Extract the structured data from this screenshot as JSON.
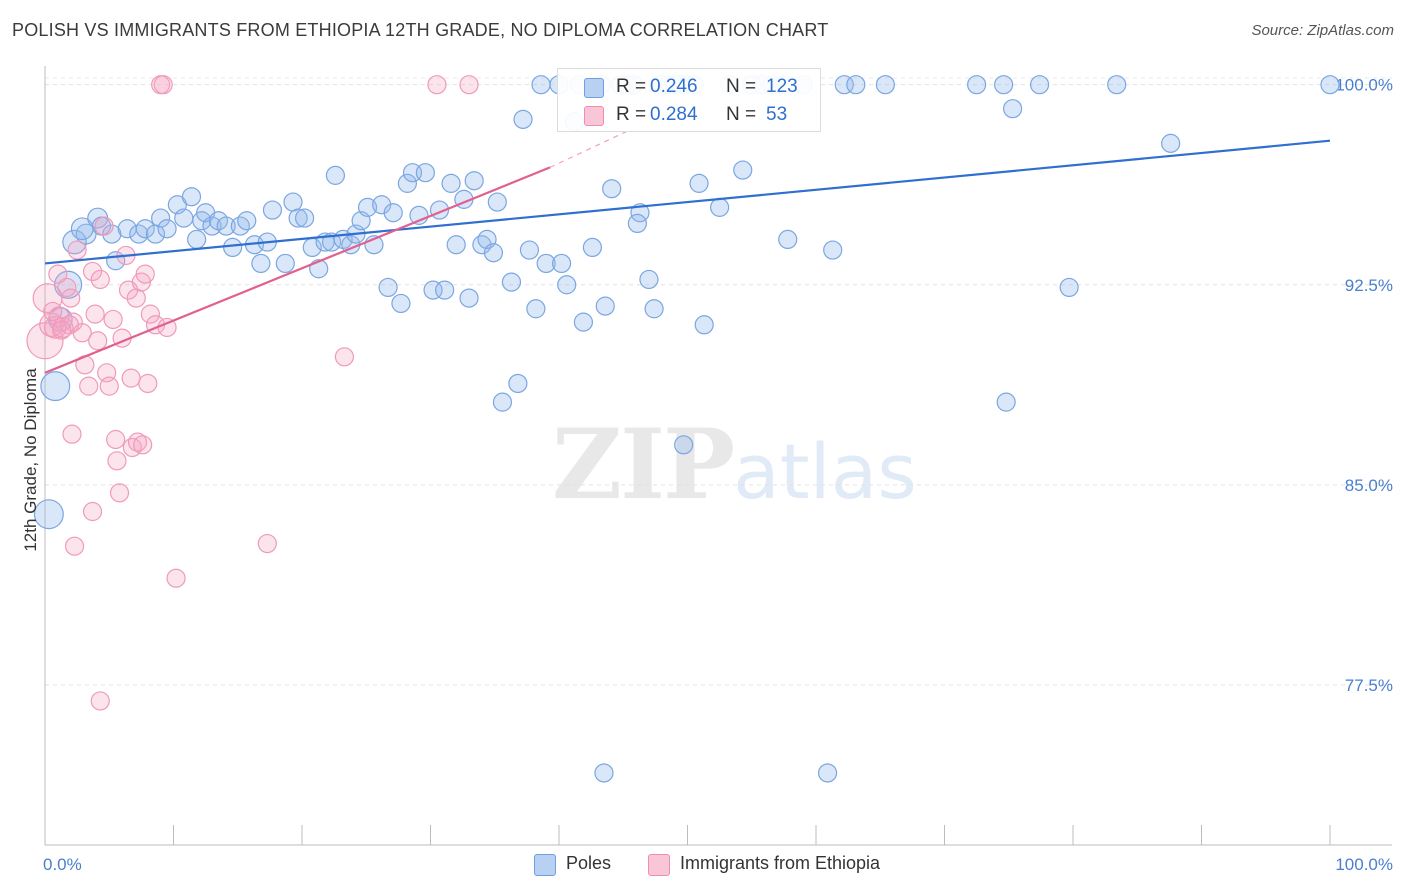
{
  "title": "POLISH VS IMMIGRANTS FROM ETHIOPIA 12TH GRADE, NO DIPLOMA CORRELATION CHART",
  "source": "Source: ZipAtlas.com",
  "watermark": {
    "part1": "ZIP",
    "part2": "atlas"
  },
  "legend": {
    "r_label": "R =",
    "n_label": "N =",
    "rows": [
      {
        "r": "0.246",
        "n": "123"
      },
      {
        "r": "0.284",
        "n": "53"
      }
    ]
  },
  "chart_data": {
    "type": "scatter",
    "title": "POLISH VS IMMIGRANTS FROM ETHIOPIA 12TH GRADE, NO DIPLOMA CORRELATION CHART",
    "xlabel": "",
    "ylabel": "12th Grade, No Diploma",
    "xlim": [
      0,
      100
    ],
    "ylim": [
      71.5,
      100.7
    ],
    "x_tick_labels": [
      "0.0%",
      "100.0%"
    ],
    "y_ticks": [
      77.5,
      85.0,
      92.5,
      100.0
    ],
    "y_tick_labels": [
      "77.5%",
      "85.0%",
      "92.5%",
      "100.0%"
    ],
    "grid": true,
    "legend_position": "top-center",
    "colors": {
      "Poles": "#6f9fe0",
      "Immigrants from Ethiopia": "#f08cb0",
      "Poles_line": "#2f6fcf",
      "Immigrants from Ethiopia_line": "#e0608f"
    },
    "series": [
      {
        "name": "Poles",
        "trend": {
          "x": [
            0,
            100
          ],
          "y": [
            93.3,
            97.9
          ]
        },
        "points": [
          [
            0.3,
            83.9,
            1.6
          ],
          [
            0.8,
            88.7,
            1.6
          ],
          [
            1.2,
            91.2,
            1.3
          ],
          [
            1.8,
            92.5,
            1.5
          ],
          [
            2.3,
            94.1,
            1.3
          ],
          [
            3.2,
            94.4,
            1.1
          ],
          [
            2.9,
            94.6,
            1.2
          ],
          [
            4.1,
            95.0,
            1.1
          ],
          [
            4.4,
            94.7,
            1.0
          ],
          [
            5.2,
            94.4,
            1.0
          ],
          [
            5.5,
            93.4,
            1.0
          ],
          [
            6.4,
            94.6,
            1.0
          ],
          [
            7.3,
            94.4,
            1.0
          ],
          [
            7.8,
            94.6,
            1.0
          ],
          [
            8.6,
            94.4,
            1.0
          ],
          [
            9.0,
            95.0,
            1.0
          ],
          [
            9.5,
            94.6,
            1.0
          ],
          [
            10.3,
            95.5,
            1.0
          ],
          [
            10.8,
            95.0,
            1.0
          ],
          [
            11.4,
            95.8,
            1.0
          ],
          [
            11.8,
            94.2,
            1.0
          ],
          [
            12.2,
            94.9,
            1.0
          ],
          [
            12.5,
            95.2,
            1.0
          ],
          [
            13.0,
            94.7,
            1.0
          ],
          [
            13.5,
            94.9,
            1.0
          ],
          [
            14.1,
            94.7,
            1.0
          ],
          [
            14.6,
            93.9,
            1.0
          ],
          [
            15.2,
            94.7,
            1.0
          ],
          [
            15.7,
            94.9,
            1.0
          ],
          [
            16.3,
            94.0,
            1.0
          ],
          [
            16.8,
            93.3,
            1.0
          ],
          [
            17.3,
            94.1,
            1.0
          ],
          [
            17.7,
            95.3,
            1.0
          ],
          [
            18.7,
            93.3,
            1.0
          ],
          [
            19.3,
            95.6,
            1.0
          ],
          [
            19.7,
            95.0,
            1.0
          ],
          [
            20.2,
            95.0,
            1.0
          ],
          [
            20.8,
            93.9,
            1.0
          ],
          [
            21.3,
            93.1,
            1.0
          ],
          [
            21.8,
            94.1,
            1.0
          ],
          [
            22.3,
            94.1,
            1.0
          ],
          [
            22.6,
            96.6,
            1.0
          ],
          [
            23.2,
            94.2,
            1.0
          ],
          [
            23.8,
            94.0,
            1.0
          ],
          [
            24.2,
            94.4,
            1.0
          ],
          [
            24.6,
            94.9,
            1.0
          ],
          [
            25.1,
            95.4,
            1.0
          ],
          [
            25.6,
            94.0,
            1.0
          ],
          [
            26.2,
            95.5,
            1.0
          ],
          [
            26.7,
            92.4,
            1.0
          ],
          [
            27.1,
            95.2,
            1.0
          ],
          [
            27.7,
            91.8,
            1.0
          ],
          [
            28.2,
            96.3,
            1.0
          ],
          [
            28.6,
            96.7,
            1.0
          ],
          [
            29.1,
            95.1,
            1.0
          ],
          [
            29.6,
            96.7,
            1.0
          ],
          [
            30.2,
            92.3,
            1.0
          ],
          [
            30.7,
            95.3,
            1.0
          ],
          [
            31.1,
            92.3,
            1.0
          ],
          [
            31.6,
            96.3,
            1.0
          ],
          [
            32.0,
            94.0,
            1.0
          ],
          [
            32.6,
            95.7,
            1.0
          ],
          [
            33.0,
            92.0,
            1.0
          ],
          [
            33.4,
            96.4,
            1.0
          ],
          [
            34.0,
            94.0,
            1.0
          ],
          [
            34.4,
            94.2,
            1.0
          ],
          [
            34.9,
            93.7,
            1.0
          ],
          [
            35.2,
            95.6,
            1.0
          ],
          [
            35.6,
            88.1,
            1.0
          ],
          [
            36.3,
            92.6,
            1.0
          ],
          [
            36.8,
            88.8,
            1.0
          ],
          [
            37.2,
            98.7,
            1.0
          ],
          [
            37.7,
            93.8,
            1.0
          ],
          [
            38.2,
            91.6,
            1.0
          ],
          [
            38.6,
            100.0,
            1.0
          ],
          [
            39.0,
            93.3,
            1.0
          ],
          [
            40.0,
            100.0,
            1.0
          ],
          [
            40.2,
            93.3,
            1.0
          ],
          [
            40.6,
            92.5,
            1.0
          ],
          [
            41.2,
            98.6,
            1.0
          ],
          [
            41.6,
            100.0,
            1.0
          ],
          [
            41.9,
            91.1,
            1.0
          ],
          [
            42.6,
            93.9,
            1.0
          ],
          [
            43.3,
            100.0,
            1.0
          ],
          [
            43.6,
            91.7,
            1.0
          ],
          [
            44.1,
            96.1,
            1.0
          ],
          [
            44.8,
            100.0,
            1.0
          ],
          [
            45.3,
            100.0,
            1.0
          ],
          [
            45.8,
            100.0,
            1.0
          ],
          [
            46.3,
            95.2,
            1.0
          ],
          [
            46.1,
            94.8,
            1.0
          ],
          [
            47.0,
            92.7,
            1.0
          ],
          [
            47.4,
            91.6,
            1.0
          ],
          [
            48.0,
            100.0,
            1.0
          ],
          [
            48.5,
            100.0,
            1.0
          ],
          [
            49.0,
            100.0,
            1.0
          ],
          [
            49.5,
            100.0,
            1.0
          ],
          [
            50.0,
            100.0,
            1.0
          ],
          [
            50.5,
            100.0,
            1.0
          ],
          [
            50.9,
            96.3,
            1.0
          ],
          [
            51.3,
            91.0,
            1.0
          ],
          [
            52.5,
            95.4,
            1.0
          ],
          [
            53.3,
            100.0,
            1.0
          ],
          [
            54.3,
            96.8,
            1.0
          ],
          [
            55.0,
            100.0,
            1.0
          ],
          [
            55.8,
            100.0,
            1.0
          ],
          [
            56.6,
            100.0,
            1.0
          ],
          [
            57.4,
            100.0,
            1.0
          ],
          [
            57.8,
            94.2,
            1.0
          ],
          [
            59.0,
            100.0,
            1.0
          ],
          [
            61.3,
            93.8,
            1.0
          ],
          [
            62.2,
            100.0,
            1.0
          ],
          [
            63.1,
            100.0,
            1.0
          ],
          [
            65.4,
            100.0,
            1.0
          ],
          [
            49.7,
            86.5,
            1.0
          ],
          [
            43.5,
            74.2,
            1.0
          ],
          [
            60.9,
            74.2,
            1.0
          ],
          [
            72.5,
            100.0,
            1.0
          ],
          [
            74.6,
            100.0,
            1.0
          ],
          [
            75.3,
            99.1,
            1.0
          ],
          [
            77.4,
            100.0,
            1.0
          ],
          [
            74.8,
            88.1,
            1.0
          ],
          [
            79.7,
            92.4,
            1.0
          ],
          [
            83.4,
            100.0,
            1.0
          ],
          [
            87.6,
            97.8,
            1.0
          ],
          [
            100.0,
            100.0,
            1.0
          ]
        ]
      },
      {
        "name": "Immigrants from Ethiopia",
        "trend": {
          "x": [
            0,
            39.3
          ],
          "y": [
            89.2,
            96.9
          ],
          "dashed_to": {
            "x": 45.5,
            "y": 98.3
          }
        },
        "points": [
          [
            0.0,
            90.4,
            2.0
          ],
          [
            0.2,
            92.0,
            1.6
          ],
          [
            0.5,
            91.0,
            1.3
          ],
          [
            0.8,
            90.9,
            1.2
          ],
          [
            1.1,
            91.3,
            1.1
          ],
          [
            1.4,
            90.9,
            1.1
          ],
          [
            1.7,
            92.4,
            1.0
          ],
          [
            2.0,
            92.0,
            1.0
          ],
          [
            2.2,
            91.1,
            1.0
          ],
          [
            2.5,
            93.8,
            1.0
          ],
          [
            2.9,
            90.7,
            1.0
          ],
          [
            3.1,
            89.5,
            1.0
          ],
          [
            3.4,
            88.7,
            1.0
          ],
          [
            3.7,
            93.0,
            1.0
          ],
          [
            3.9,
            91.4,
            1.0
          ],
          [
            4.1,
            90.4,
            1.0
          ],
          [
            4.3,
            92.7,
            1.0
          ],
          [
            4.6,
            94.7,
            1.0
          ],
          [
            4.8,
            89.2,
            1.0
          ],
          [
            5.0,
            88.7,
            1.0
          ],
          [
            5.3,
            91.2,
            1.0
          ],
          [
            5.5,
            86.7,
            1.0
          ],
          [
            5.6,
            85.9,
            1.0
          ],
          [
            5.8,
            84.7,
            1.0
          ],
          [
            6.0,
            90.5,
            1.0
          ],
          [
            6.3,
            93.6,
            1.0
          ],
          [
            6.5,
            92.3,
            1.0
          ],
          [
            6.7,
            89.0,
            1.0
          ],
          [
            6.8,
            86.4,
            1.0
          ],
          [
            7.1,
            92.0,
            1.0
          ],
          [
            7.2,
            86.6,
            1.0
          ],
          [
            7.5,
            92.6,
            1.0
          ],
          [
            7.6,
            86.5,
            1.0
          ],
          [
            7.8,
            92.9,
            1.0
          ],
          [
            8.0,
            88.8,
            1.0
          ],
          [
            8.2,
            91.4,
            1.0
          ],
          [
            8.6,
            91.0,
            1.0
          ],
          [
            9.0,
            100.0,
            1.0
          ],
          [
            9.2,
            100.0,
            1.0
          ],
          [
            9.5,
            90.9,
            1.0
          ],
          [
            10.2,
            81.5,
            1.0
          ],
          [
            2.1,
            86.9,
            1.0
          ],
          [
            2.3,
            82.7,
            1.0
          ],
          [
            3.7,
            84.0,
            1.0
          ],
          [
            4.3,
            76.9,
            1.0
          ],
          [
            17.3,
            82.8,
            1.0
          ],
          [
            23.3,
            89.8,
            1.0
          ],
          [
            30.5,
            100.0,
            1.0
          ],
          [
            33.0,
            100.0,
            1.0
          ],
          [
            1.9,
            91.0,
            1.0
          ],
          [
            1.0,
            92.9,
            1.0
          ],
          [
            1.3,
            90.8,
            1.0
          ],
          [
            0.6,
            91.5,
            1.0
          ]
        ]
      }
    ]
  },
  "bottom_legend": [
    "Poles",
    "Immigrants from Ethiopia"
  ]
}
